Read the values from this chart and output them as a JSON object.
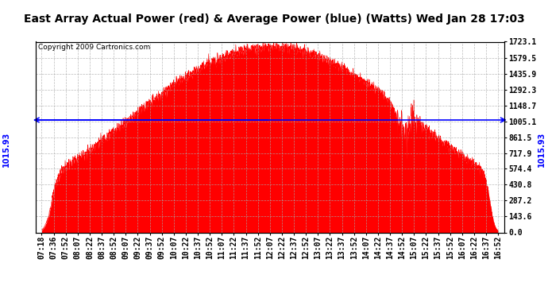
{
  "title": "East Array Actual Power (red) & Average Power (blue) (Watts) Wed Jan 28 17:03",
  "copyright": "Copyright 2009 Cartronics.com",
  "y_ticks": [
    0.0,
    143.6,
    287.2,
    430.8,
    574.4,
    717.9,
    861.5,
    1005.1,
    1148.7,
    1292.3,
    1435.9,
    1579.5,
    1723.1
  ],
  "ymax": 1723.1,
  "ymin": 0.0,
  "average_line_value": 1015.93,
  "bar_color": "#FF0000",
  "average_line_color": "#0000FF",
  "background_color": "#FFFFFF",
  "grid_color": "#AAAAAA",
  "x_labels": [
    "07:18",
    "07:36",
    "07:52",
    "08:07",
    "08:22",
    "08:37",
    "08:52",
    "09:07",
    "09:22",
    "09:37",
    "09:52",
    "10:07",
    "10:22",
    "10:37",
    "10:52",
    "11:07",
    "11:22",
    "11:37",
    "11:52",
    "12:07",
    "12:22",
    "12:37",
    "12:52",
    "13:07",
    "13:22",
    "13:37",
    "13:52",
    "14:07",
    "14:22",
    "14:37",
    "14:52",
    "15:07",
    "15:22",
    "15:37",
    "15:52",
    "16:07",
    "16:22",
    "16:37",
    "16:52"
  ],
  "title_fontsize": 10,
  "tick_fontsize": 7,
  "copyright_fontsize": 6.5,
  "avg_label_fontsize": 7
}
